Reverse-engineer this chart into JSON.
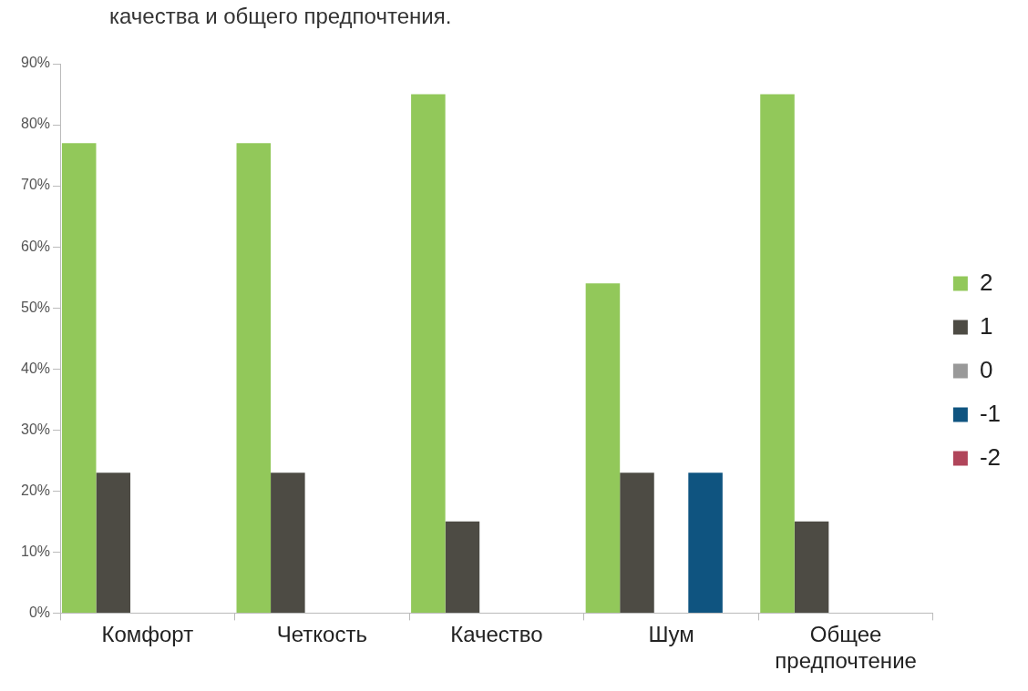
{
  "chart_data": {
    "type": "bar",
    "title": "качества и общего предпочтения.",
    "categories": [
      "Комфорт",
      "Четкость",
      "Качество",
      "Шум",
      "Общее предпочтение"
    ],
    "series": [
      {
        "name": "2",
        "color": "#92c85a",
        "values": [
          77,
          77,
          85,
          54,
          85
        ]
      },
      {
        "name": "1",
        "color": "#4d4b44",
        "values": [
          23,
          23,
          15,
          23,
          15
        ]
      },
      {
        "name": "0",
        "color": "#999999",
        "values": [
          0,
          0,
          0,
          0,
          0
        ]
      },
      {
        "name": "-1",
        "color": "#0f5480",
        "values": [
          0,
          0,
          0,
          23,
          0
        ]
      },
      {
        "name": "-2",
        "color": "#b0455a",
        "values": [
          0,
          0,
          0,
          0,
          0
        ]
      }
    ],
    "ylim": [
      0,
      90
    ],
    "yticks": [
      {
        "value": 0,
        "label": "0%"
      },
      {
        "value": 10,
        "label": "10%"
      },
      {
        "value": 20,
        "label": "20%"
      },
      {
        "value": 30,
        "label": "30%"
      },
      {
        "value": 40,
        "label": "40%"
      },
      {
        "value": 50,
        "label": "50%"
      },
      {
        "value": 60,
        "label": "60%"
      },
      {
        "value": 70,
        "label": "70%"
      },
      {
        "value": 80,
        "label": "80%"
      },
      {
        "value": 90,
        "label": "90%"
      }
    ],
    "grid": false,
    "legend": "right"
  }
}
